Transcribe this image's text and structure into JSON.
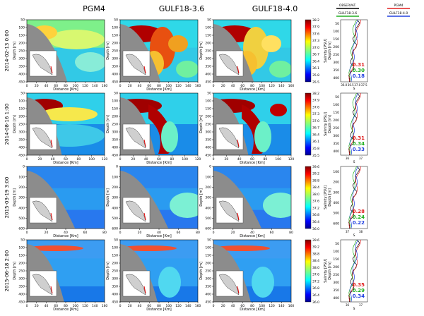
{
  "columns": [
    "PGM4",
    "GULF18-3.6",
    "GULF18-4.0"
  ],
  "profile_legend": {
    "entries": [
      {
        "name": "OBSERVAT.",
        "color": "#000000"
      },
      {
        "name": "PGM4",
        "color": "#e02020"
      },
      {
        "name": "GULF18-3.6",
        "color": "#20b020"
      },
      {
        "name": "GULF18-4.0",
        "color": "#2040e0"
      }
    ]
  },
  "axis_labels": {
    "x": "Distance [Km]",
    "y": "Depth [m]",
    "colorbar": "Salinity [PSU]",
    "profile_x": "S"
  },
  "chart_data": [
    {
      "type": "heatmap",
      "row_label": "2014-02-13  0:00",
      "x_ticks": [
        0,
        20,
        40,
        60,
        80,
        100,
        120,
        140,
        160
      ],
      "y_ticks": [
        50,
        100,
        150,
        200,
        250,
        300,
        350,
        400,
        450
      ],
      "colorbar_ticks": [
        38.2,
        37.9,
        37.6,
        37.3,
        37.0,
        36.7,
        36.4,
        36.1,
        35.8,
        35.5
      ],
      "scores": [
        {
          "model": "PGM4",
          "value": "0.31",
          "color": "#e02020"
        },
        {
          "model": "GULF18-3.6",
          "value": "0.30",
          "color": "#20b020"
        },
        {
          "model": "GULF18-4.0",
          "value": "0.18",
          "color": "#2040e0"
        }
      ],
      "profile_y_ticks": [
        50,
        100,
        150,
        200,
        250,
        300,
        350,
        400
      ],
      "profile_x_ticks": [
        "36.0",
        "36.5",
        "37.0",
        "37.5"
      ]
    },
    {
      "type": "heatmap",
      "row_label": "2014-08-16  1:00",
      "x_ticks": [
        0,
        20,
        40,
        60,
        80,
        100,
        120
      ],
      "y_ticks": [
        50,
        100,
        150,
        200,
        250,
        300,
        350,
        400,
        450
      ],
      "colorbar_ticks": [
        38.2,
        37.9,
        37.6,
        37.3,
        37.0,
        36.7,
        36.4,
        36.1,
        35.8,
        35.5
      ],
      "scores": [
        {
          "model": "PGM4",
          "value": "0.31",
          "color": "#e02020"
        },
        {
          "model": "GULF18-3.6",
          "value": "0.34",
          "color": "#20b020"
        },
        {
          "model": "GULF18-4.0",
          "value": "0.33",
          "color": "#2040e0"
        }
      ],
      "profile_y_ticks": [
        50,
        100,
        150,
        200,
        250,
        300,
        350,
        400
      ],
      "profile_x_ticks": [
        "36",
        "37"
      ]
    },
    {
      "type": "heatmap",
      "row_label": "2015-03-19  3:00",
      "x_ticks": [
        0,
        20,
        40,
        60,
        80
      ],
      "y_ticks": [
        0,
        100,
        200,
        300,
        400,
        500,
        600
      ],
      "colorbar_ticks": [
        39.6,
        39.2,
        38.8,
        38.4,
        38.0,
        37.6,
        37.2,
        36.8,
        36.4,
        36.0
      ],
      "scores": [
        {
          "model": "PGM4",
          "value": "0.28",
          "color": "#e02020"
        },
        {
          "model": "GULF18-3.6",
          "value": "0.24",
          "color": "#20b020"
        },
        {
          "model": "GULF18-4.0",
          "value": "0.22",
          "color": "#2040e0"
        }
      ],
      "profile_y_ticks": [
        100,
        200,
        300,
        400,
        500,
        600
      ],
      "profile_x_ticks": [
        "37",
        "38"
      ]
    },
    {
      "type": "heatmap",
      "row_label": "2015-06-18  2:00",
      "x_ticks": [
        0,
        20,
        40,
        60,
        80,
        100,
        120,
        140,
        160
      ],
      "y_ticks": [
        50,
        100,
        150,
        200,
        250,
        300,
        350,
        400,
        450
      ],
      "colorbar_ticks": [
        39.6,
        39.2,
        38.8,
        38.4,
        38.0,
        37.6,
        37.2,
        36.8,
        36.4,
        36.0
      ],
      "scores": [
        {
          "model": "PGM4",
          "value": "0.35",
          "color": "#e02020"
        },
        {
          "model": "GULF18-3.6",
          "value": "0.29",
          "color": "#20b020"
        },
        {
          "model": "GULF18-4.0",
          "value": "0.34",
          "color": "#2040e0"
        }
      ],
      "profile_y_ticks": [
        50,
        100,
        150,
        200,
        250,
        300,
        350,
        400
      ],
      "profile_x_ticks": [
        "36",
        "37"
      ]
    }
  ]
}
